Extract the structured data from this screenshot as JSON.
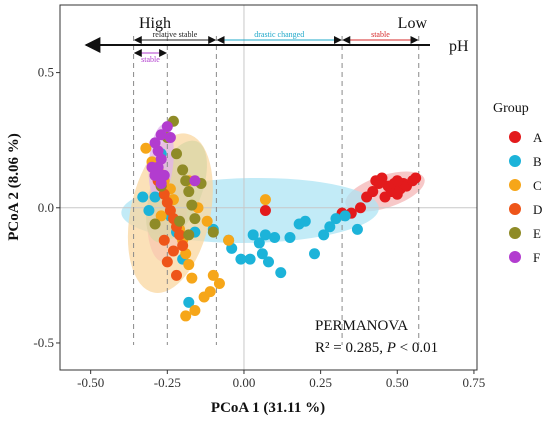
{
  "chart_data": {
    "type": "scatter",
    "xlabel": "PCoA 1 (31.11 %)",
    "ylabel": "PCoA 2 (8.06 %)",
    "xlim": [
      -0.6,
      0.76
    ],
    "ylim": [
      -0.6,
      0.75
    ],
    "xticks": [
      "-0.50",
      "-0.25",
      "0.00",
      "0.25",
      "0.50",
      "0.75"
    ],
    "yticks": [
      "0.5",
      "0.0",
      "-0.5"
    ],
    "legend": {
      "title": "Group",
      "placement": "right"
    },
    "annotation": {
      "text1": "PERMANOVA",
      "text2_prefix": "R² = 0.285, ",
      "text2_italic": "P",
      "text2_suffix": " < 0.01"
    },
    "ph_bar": {
      "high_label": "High",
      "low_label": "Low",
      "axis_label": "pH",
      "segments": [
        {
          "label": "relative stable",
          "from": -0.36,
          "to": -0.09,
          "color": "#222222"
        },
        {
          "label": "drastic changed",
          "from": -0.09,
          "to": 0.32,
          "color": "#1fa8c9"
        },
        {
          "label": "stable",
          "from": 0.32,
          "to": 0.57,
          "color": "#d62828"
        }
      ],
      "sub_segment": {
        "label": "stable",
        "from": -0.36,
        "to": -0.25,
        "color": "#b23ccf"
      },
      "dashed_x": [
        -0.36,
        -0.25,
        -0.09,
        0.32,
        0.57
      ]
    },
    "series": [
      {
        "name": "A",
        "color": "#e31a1c",
        "ellipse": {
          "cx": 0.46,
          "cy": 0.06,
          "rx": 0.135,
          "ry": 0.06,
          "angle": 18,
          "fill": "#f4b6b6"
        },
        "points": [
          [
            0.07,
            -0.01
          ],
          [
            0.32,
            -0.02
          ],
          [
            0.35,
            -0.02
          ],
          [
            0.38,
            0.0
          ],
          [
            0.4,
            0.04
          ],
          [
            0.42,
            0.06
          ],
          [
            0.43,
            0.1
          ],
          [
            0.45,
            0.11
          ],
          [
            0.46,
            0.04
          ],
          [
            0.47,
            0.08
          ],
          [
            0.48,
            0.06
          ],
          [
            0.49,
            0.09
          ],
          [
            0.5,
            0.05
          ],
          [
            0.51,
            0.07
          ],
          [
            0.52,
            0.09
          ],
          [
            0.53,
            0.08
          ],
          [
            0.55,
            0.1
          ],
          [
            0.56,
            0.11
          ],
          [
            0.44,
            0.09
          ],
          [
            0.5,
            0.1
          ]
        ]
      },
      {
        "name": "B",
        "color": "#1cb3d9",
        "ellipse": {
          "cx": 0.02,
          "cy": -0.01,
          "rx": 0.42,
          "ry": 0.12,
          "angle": 1,
          "fill": "#aee4f4"
        },
        "points": [
          [
            -0.27,
            0.2
          ],
          [
            -0.33,
            0.04
          ],
          [
            -0.31,
            -0.01
          ],
          [
            -0.29,
            0.04
          ],
          [
            -0.24,
            -0.03
          ],
          [
            -0.22,
            -0.09
          ],
          [
            -0.2,
            -0.19
          ],
          [
            -0.18,
            -0.35
          ],
          [
            -0.1,
            -0.08
          ],
          [
            -0.05,
            -0.12
          ],
          [
            -0.04,
            -0.15
          ],
          [
            -0.01,
            -0.19
          ],
          [
            0.02,
            -0.19
          ],
          [
            0.05,
            -0.13
          ],
          [
            0.06,
            -0.17
          ],
          [
            0.08,
            -0.2
          ],
          [
            0.1,
            -0.11
          ],
          [
            0.12,
            -0.24
          ],
          [
            0.15,
            -0.11
          ],
          [
            0.18,
            -0.06
          ],
          [
            0.2,
            -0.05
          ],
          [
            0.23,
            -0.17
          ],
          [
            0.26,
            -0.1
          ],
          [
            0.28,
            -0.07
          ],
          [
            0.3,
            -0.04
          ],
          [
            0.33,
            -0.03
          ],
          [
            0.37,
            -0.08
          ],
          [
            0.07,
            -0.1
          ],
          [
            0.03,
            -0.1
          ],
          [
            -0.16,
            -0.09
          ]
        ]
      },
      {
        "name": "C",
        "color": "#f6a619",
        "ellipse": {
          "cx": -0.24,
          "cy": -0.02,
          "rx": 0.13,
          "ry": 0.3,
          "angle": -12,
          "fill": "#fad7a0"
        },
        "points": [
          [
            -0.32,
            0.22
          ],
          [
            -0.3,
            0.17
          ],
          [
            -0.28,
            0.14
          ],
          [
            -0.26,
            0.1
          ],
          [
            -0.24,
            0.07
          ],
          [
            -0.23,
            0.03
          ],
          [
            -0.22,
            -0.05
          ],
          [
            -0.21,
            -0.08
          ],
          [
            -0.2,
            -0.12
          ],
          [
            -0.19,
            -0.17
          ],
          [
            -0.18,
            -0.21
          ],
          [
            -0.17,
            -0.26
          ],
          [
            -0.16,
            -0.38
          ],
          [
            -0.13,
            -0.33
          ],
          [
            -0.11,
            -0.31
          ],
          [
            -0.1,
            -0.25
          ],
          [
            -0.08,
            -0.28
          ],
          [
            -0.15,
            0.0
          ],
          [
            -0.05,
            -0.12
          ],
          [
            0.07,
            0.03
          ],
          [
            -0.18,
            0.1
          ],
          [
            -0.27,
            -0.03
          ],
          [
            -0.19,
            -0.4
          ],
          [
            -0.12,
            -0.05
          ]
        ]
      },
      {
        "name": "D",
        "color": "#ee5519",
        "ellipse": {
          "cx": -0.25,
          "cy": 0.0,
          "rx": 0.065,
          "ry": 0.2,
          "angle": -5,
          "fill": "#f8c7b0"
        },
        "points": [
          [
            -0.28,
            0.1
          ],
          [
            -0.27,
            0.08
          ],
          [
            -0.26,
            0.05
          ],
          [
            -0.25,
            0.02
          ],
          [
            -0.24,
            -0.01
          ],
          [
            -0.23,
            -0.04
          ],
          [
            -0.22,
            -0.07
          ],
          [
            -0.21,
            -0.1
          ],
          [
            -0.2,
            -0.14
          ],
          [
            -0.23,
            -0.16
          ],
          [
            -0.25,
            -0.2
          ],
          [
            -0.22,
            -0.25
          ],
          [
            -0.29,
            0.12
          ],
          [
            -0.26,
            -0.12
          ]
        ]
      },
      {
        "name": "E",
        "color": "#8f8b27",
        "ellipse": {
          "cx": -0.22,
          "cy": 0.06,
          "rx": 0.08,
          "ry": 0.2,
          "angle": -22,
          "fill": "#d9d6a6"
        },
        "points": [
          [
            -0.23,
            0.32
          ],
          [
            -0.25,
            0.26
          ],
          [
            -0.22,
            0.2
          ],
          [
            -0.2,
            0.14
          ],
          [
            -0.19,
            0.1
          ],
          [
            -0.18,
            0.06
          ],
          [
            -0.17,
            0.01
          ],
          [
            -0.16,
            -0.04
          ],
          [
            -0.18,
            -0.1
          ],
          [
            -0.21,
            -0.05
          ],
          [
            -0.27,
            0.08
          ],
          [
            -0.29,
            -0.06
          ],
          [
            -0.1,
            -0.09
          ],
          [
            -0.14,
            0.09
          ]
        ]
      },
      {
        "name": "F",
        "color": "#b23ccf",
        "ellipse": {
          "cx": -0.27,
          "cy": 0.17,
          "rx": 0.04,
          "ry": 0.14,
          "angle": -5,
          "fill": "#e2b3ee"
        },
        "points": [
          [
            -0.25,
            0.3
          ],
          [
            -0.27,
            0.27
          ],
          [
            -0.29,
            0.24
          ],
          [
            -0.28,
            0.21
          ],
          [
            -0.27,
            0.18
          ],
          [
            -0.28,
            0.15
          ],
          [
            -0.26,
            0.12
          ],
          [
            -0.29,
            0.12
          ],
          [
            -0.27,
            0.09
          ],
          [
            -0.24,
            0.26
          ],
          [
            -0.16,
            0.1
          ],
          [
            -0.3,
            0.15
          ]
        ]
      }
    ]
  }
}
